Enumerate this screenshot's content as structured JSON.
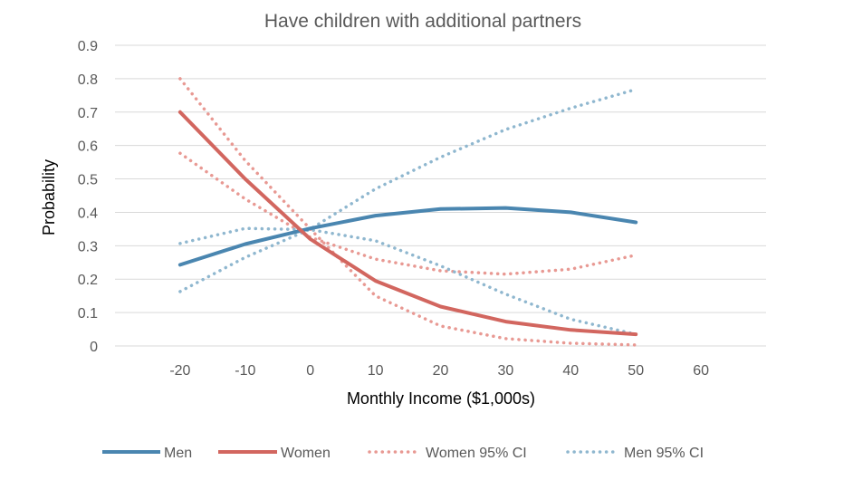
{
  "chart_data": {
    "type": "line",
    "title": "Have children with additional partners",
    "xlabel": "Monthly Income ($1,000s)",
    "ylabel": "Probability",
    "xlim": [
      -30,
      70
    ],
    "ylim": [
      0,
      0.9
    ],
    "x_ticks": [
      -20,
      -10,
      0,
      10,
      20,
      30,
      40,
      50,
      60
    ],
    "x_tick_labels": [
      "-20",
      "-10",
      "0",
      "10",
      "20",
      "30",
      "40",
      "50",
      "60"
    ],
    "y_ticks": [
      0,
      0.1,
      0.2,
      0.3,
      0.4,
      0.5,
      0.6,
      0.7,
      0.8,
      0.9
    ],
    "y_tick_labels": [
      "0",
      "0.1",
      "0.2",
      "0.3",
      "0.4",
      "0.5",
      "0.6",
      "0.7",
      "0.8",
      "0.9"
    ],
    "grid": true,
    "legend_position": "bottom",
    "x": [
      -20,
      -10,
      0,
      10,
      20,
      30,
      40,
      50
    ],
    "series": [
      {
        "name": "Men",
        "style": "solid",
        "color": "#4a86b0",
        "values": [
          0.243,
          0.305,
          0.352,
          0.39,
          0.41,
          0.413,
          0.4,
          0.37
        ]
      },
      {
        "name": "Women",
        "style": "solid",
        "color": "#d2665f",
        "values": [
          0.7,
          0.5,
          0.32,
          0.195,
          0.118,
          0.073,
          0.048,
          0.035
        ]
      },
      {
        "name": "Women 95% CI",
        "style": "dotted",
        "color": "#e89993",
        "values": [
          0.8,
          0.555,
          0.35,
          0.15,
          0.06,
          0.022,
          0.008,
          0.003
        ]
      },
      {
        "name": "Women 95% CI",
        "style": "dotted",
        "color": "#e89993",
        "values": [
          0.577,
          0.44,
          0.325,
          0.26,
          0.225,
          0.215,
          0.23,
          0.272
        ]
      },
      {
        "name": "Men 95% CI",
        "style": "dotted",
        "color": "#8fb7cf",
        "values": [
          0.163,
          0.265,
          0.35,
          0.47,
          0.565,
          0.648,
          0.712,
          0.768
        ]
      },
      {
        "name": "Men 95% CI",
        "style": "dotted",
        "color": "#8fb7cf",
        "values": [
          0.307,
          0.352,
          0.348,
          0.315,
          0.24,
          0.155,
          0.08,
          0.035
        ]
      }
    ],
    "legend": [
      {
        "label": "Men",
        "style": "solid",
        "color": "#4a86b0"
      },
      {
        "label": "Women",
        "style": "solid",
        "color": "#d2665f"
      },
      {
        "label": "Women 95% CI",
        "style": "dotted",
        "color": "#e89993"
      },
      {
        "label": "Men 95% CI",
        "style": "dotted",
        "color": "#8fb7cf"
      }
    ]
  }
}
